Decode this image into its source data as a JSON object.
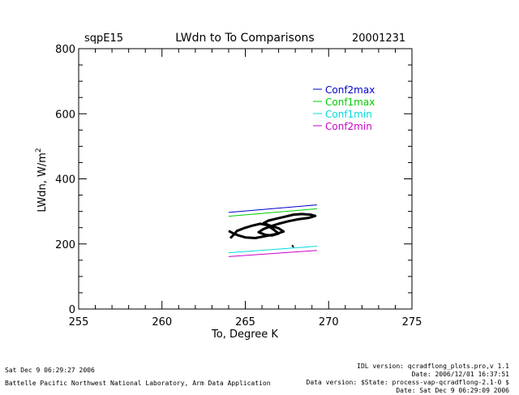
{
  "chart_data": {
    "type": "line",
    "title": "LWdn to To Comparisons",
    "site": "sqpE15",
    "date": "20001231",
    "xlabel": "To, Degree K",
    "ylabel_main": "LWdn, W/m",
    "ylabel_sup": "2",
    "xlim": [
      255,
      275
    ],
    "ylim": [
      0,
      800
    ],
    "x_ticks": [
      255,
      260,
      265,
      270,
      275
    ],
    "y_ticks": [
      0,
      200,
      400,
      600,
      800
    ],
    "x_minor_step": 1,
    "y_minor_step": 50,
    "grid": false,
    "legend_position": "top-right",
    "series": [
      {
        "name": "Conf2max",
        "color": "#0000cc",
        "x": [
          264.0,
          269.3
        ],
        "y": [
          297,
          320
        ]
      },
      {
        "name": "Conf1max",
        "color": "#00cc00",
        "x": [
          264.0,
          269.3
        ],
        "y": [
          285,
          308
        ]
      },
      {
        "name": "Conf1min",
        "color": "#00dddd",
        "x": [
          264.0,
          269.3
        ],
        "y": [
          173,
          193
        ]
      },
      {
        "name": "Conf2min",
        "color": "#cc00cc",
        "x": [
          264.0,
          269.3
        ],
        "y": [
          161,
          180
        ]
      }
    ],
    "observations": {
      "color": "#000000",
      "x": [
        264.0,
        264.3,
        264.6,
        265.0,
        265.6,
        266.2,
        266.8,
        267.3,
        267.0,
        266.5,
        266.1,
        266.4,
        266.9,
        267.4,
        267.9,
        268.4,
        268.9,
        269.2,
        268.8,
        268.2,
        267.6,
        267.0,
        266.5,
        266.1,
        265.8,
        266.2,
        266.6,
        267.0,
        266.7,
        266.3,
        265.9,
        265.4,
        264.9,
        264.5,
        264.3,
        264.1
      ],
      "y": [
        240,
        232,
        226,
        220,
        218,
        224,
        230,
        238,
        248,
        256,
        264,
        272,
        278,
        284,
        290,
        292,
        290,
        286,
        280,
        276,
        270,
        262,
        254,
        246,
        236,
        228,
        226,
        232,
        244,
        258,
        262,
        256,
        248,
        240,
        228,
        218
      ],
      "extra_x": [
        267.8,
        267.9
      ],
      "extra_y": [
        196,
        190
      ]
    }
  },
  "footer": {
    "left_line1": "Sat Dec  9 06:29:27 2006",
    "left_line2": "Battelle Pacific Northwest National Laboratory, Arm Data Application",
    "right_line1": "IDL version: qcradflong_plots.pro,v 1.1",
    "right_line2": "Date: 2006/12/01 16:37:51",
    "right_line3": "Data version: $State: process-vap-qcradflong-2.1-0 $",
    "right_line4": "Date: Sat Dec  9 06:29:09 2006"
  }
}
